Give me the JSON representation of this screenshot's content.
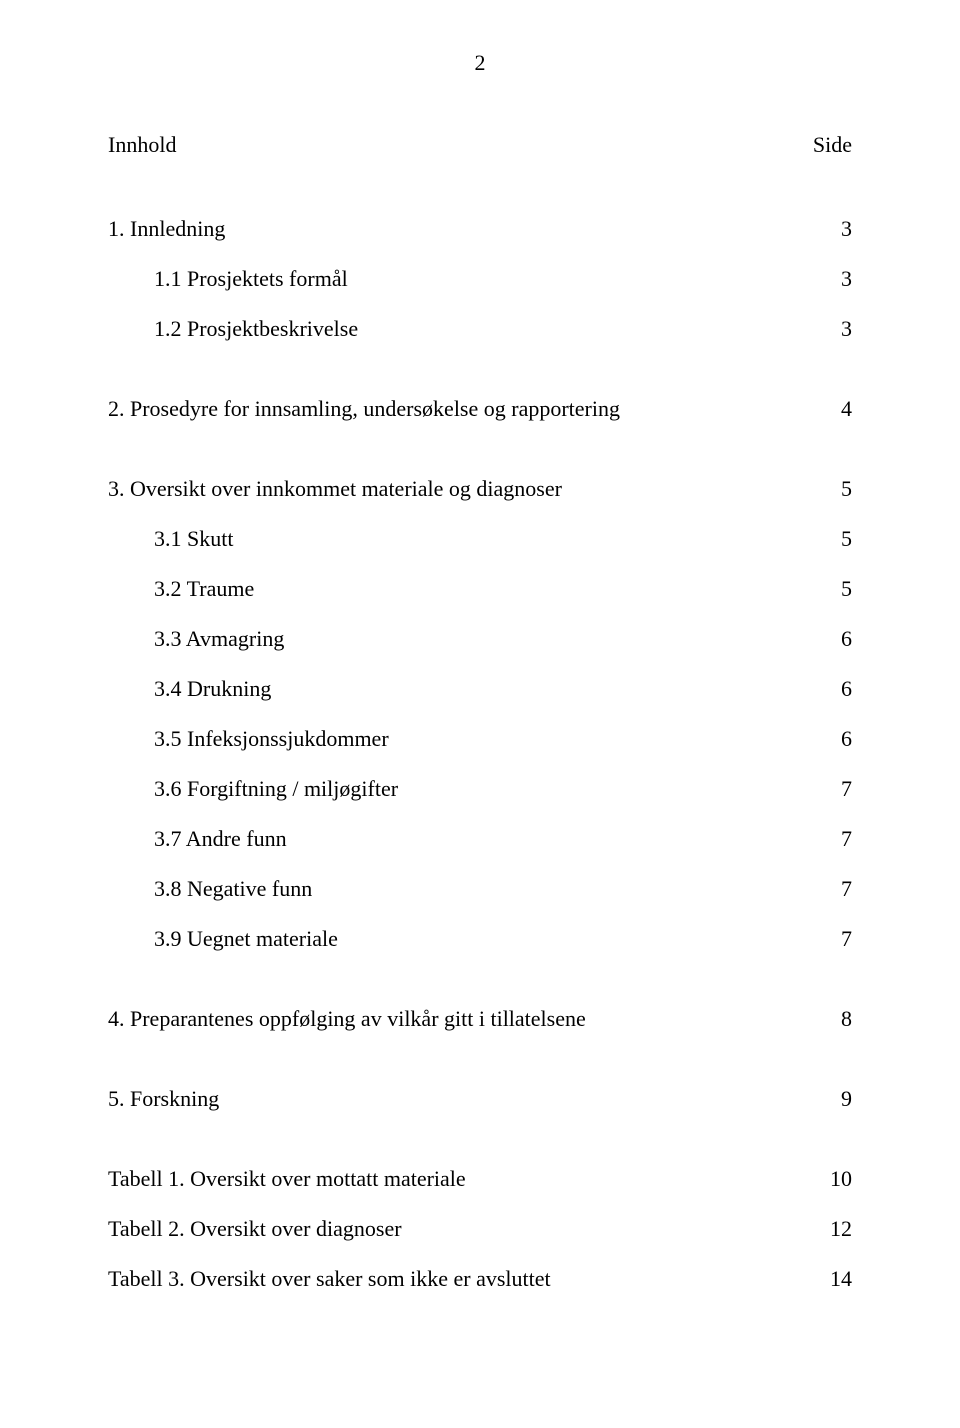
{
  "page_number": "2",
  "heading": {
    "left": "Innhold",
    "right": "Side"
  },
  "entries": [
    {
      "label": "1. Innledning",
      "page": "3",
      "sub": false,
      "gap_before": "none"
    },
    {
      "label": "1.1 Prosjektets formål",
      "page": "3",
      "sub": true,
      "gap_before": "none"
    },
    {
      "label": "1.2 Prosjektbeskrivelse",
      "page": "3",
      "sub": true,
      "gap_before": "none"
    },
    {
      "label": "2. Prosedyre for innsamling, undersøkelse og rapportering",
      "page": "4",
      "sub": false,
      "gap_before": "small"
    },
    {
      "label": "3. Oversikt over innkommet materiale og diagnoser",
      "page": "5",
      "sub": false,
      "gap_before": "small"
    },
    {
      "label": "3.1 Skutt",
      "page": "5",
      "sub": true,
      "gap_before": "none"
    },
    {
      "label": "3.2 Traume",
      "page": "5",
      "sub": true,
      "gap_before": "none"
    },
    {
      "label": "3.3 Avmagring",
      "page": "6",
      "sub": true,
      "gap_before": "none"
    },
    {
      "label": "3.4 Drukning",
      "page": "6",
      "sub": true,
      "gap_before": "none"
    },
    {
      "label": "3.5 Infeksjonssjukdommer",
      "page": "6",
      "sub": true,
      "gap_before": "none"
    },
    {
      "label": "3.6 Forgiftning / miljøgifter",
      "page": "7",
      "sub": true,
      "gap_before": "none"
    },
    {
      "label": "3.7 Andre funn",
      "page": "7",
      "sub": true,
      "gap_before": "none"
    },
    {
      "label": "3.8 Negative funn",
      "page": "7",
      "sub": true,
      "gap_before": "none"
    },
    {
      "label": "3.9 Uegnet materiale",
      "page": "7",
      "sub": true,
      "gap_before": "none"
    },
    {
      "label": "4. Preparantenes oppfølging av vilkår gitt i tillatelsene",
      "page": "8",
      "sub": false,
      "gap_before": "small"
    },
    {
      "label": "5. Forskning",
      "page": "9",
      "sub": false,
      "gap_before": "small"
    },
    {
      "label": "Tabell 1. Oversikt over mottatt materiale",
      "page": "10",
      "sub": false,
      "gap_before": "small"
    },
    {
      "label": "Tabell 2. Oversikt over diagnoser",
      "page": "12",
      "sub": false,
      "gap_before": "none"
    },
    {
      "label": "Tabell 3. Oversikt over saker som ikke er avsluttet",
      "page": "14",
      "sub": false,
      "gap_before": "none"
    }
  ]
}
